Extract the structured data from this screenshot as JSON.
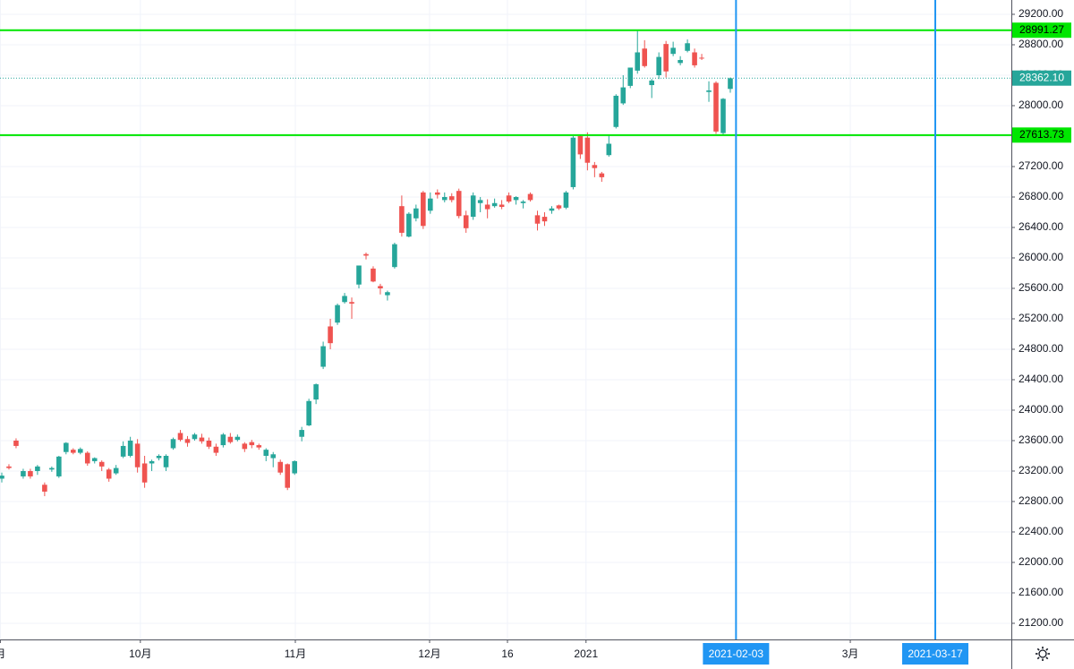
{
  "chart_data": {
    "type": "candlestick",
    "up_color": "#26a69a",
    "down_color": "#ef5350",
    "grid": true,
    "xlim": [
      -0.25,
      141.35
    ],
    "ylim": [
      20988,
      29388
    ],
    "xticks": [
      {
        "value": -0.2,
        "label": "月"
      },
      {
        "value": 19.4,
        "label": "10月"
      },
      {
        "value": 41.1,
        "label": "11月"
      },
      {
        "value": 59.9,
        "label": "12月"
      },
      {
        "value": 70.8,
        "label": "16"
      },
      {
        "value": 81.8,
        "label": "2021"
      },
      {
        "value": 118.8,
        "label": "3月"
      }
    ],
    "yticks": [
      {
        "value": 21200,
        "label": "21200.00"
      },
      {
        "value": 21600,
        "label": "21600.00"
      },
      {
        "value": 22000,
        "label": "22000.00"
      },
      {
        "value": 22400,
        "label": "22400.00"
      },
      {
        "value": 22800,
        "label": "22800.00"
      },
      {
        "value": 23200,
        "label": "23200.00"
      },
      {
        "value": 23600,
        "label": "23600.00"
      },
      {
        "value": 24000,
        "label": "24000.00"
      },
      {
        "value": 24400,
        "label": "24400.00"
      },
      {
        "value": 24800,
        "label": "24800.00"
      },
      {
        "value": 25200,
        "label": "25200.00"
      },
      {
        "value": 25600,
        "label": "25600.00"
      },
      {
        "value": 26000,
        "label": "26000.00"
      },
      {
        "value": 26400,
        "label": "26400.00"
      },
      {
        "value": 26800,
        "label": "26800.00"
      },
      {
        "value": 27200,
        "label": "27200.00"
      },
      {
        "value": 27600,
        "label": "27600.00"
      },
      {
        "value": 28000,
        "label": "28000.00"
      },
      {
        "value": 28400,
        "label": "28400.00"
      },
      {
        "value": 28800,
        "label": "28800.00"
      },
      {
        "value": 29200,
        "label": "29200.00"
      }
    ],
    "hlines": [
      {
        "value": 28991.27,
        "label": "28991.27",
        "color": "#00e600",
        "text_color": "#000000",
        "dashed": false
      },
      {
        "value": 28362.1,
        "label": "28362.10",
        "color": "#26a69a",
        "text_color": "#ffffff",
        "dashed": true
      },
      {
        "value": 27613.73,
        "label": "27613.73",
        "color": "#00e600",
        "text_color": "#000000",
        "dashed": false
      }
    ],
    "vlines": [
      {
        "value": 102.8,
        "label": "2021-02-03",
        "color": "#2196f3"
      },
      {
        "value": 130.7,
        "label": "2021-03-17",
        "color": "#2196f3"
      }
    ],
    "open": [
      23100,
      23260,
      23600,
      23130,
      23200,
      23200,
      23020,
      23220,
      23130,
      23450,
      23480,
      23440,
      23440,
      23330,
      23320,
      23220,
      23170,
      23390,
      23400,
      23560,
      23300,
      23300,
      23370,
      23250,
      23500,
      23700,
      23620,
      23620,
      23640,
      23600,
      23520,
      23540,
      23650,
      23610,
      23560,
      23580,
      23540,
      23400,
      23370,
      23320,
      23290,
      23170,
      23650,
      23800,
      24140,
      24570,
      25100,
      25150,
      25420,
      25420,
      25650,
      26050,
      25860,
      25630,
      25510,
      25880,
      26680,
      26280,
      26520,
      26860,
      26620,
      26860,
      26760,
      26810,
      26880,
      26560,
      26540,
      26720,
      26700,
      26680,
      26700,
      26820,
      26760,
      26720,
      26840,
      26560,
      26540,
      26620,
      26690,
      26660,
      26930,
      27600,
      27580,
      27220,
      27110,
      27350,
      27720,
      28030,
      28260,
      28460,
      28750,
      28270,
      28400,
      28810,
      28680,
      28560,
      28720,
      28700,
      28630,
      28180,
      28300,
      27640,
      28220
    ],
    "high": [
      23180,
      23290,
      23630,
      23230,
      23230,
      23280,
      23050,
      23260,
      23400,
      23580,
      23500,
      23510,
      23460,
      23380,
      23340,
      23240,
      23280,
      23590,
      23650,
      23620,
      23400,
      23350,
      23420,
      23420,
      23640,
      23740,
      23660,
      23700,
      23690,
      23640,
      23560,
      23700,
      23700,
      23680,
      23580,
      23610,
      23560,
      23500,
      23450,
      23350,
      23300,
      23340,
      23780,
      24150,
      24350,
      24900,
      25200,
      25400,
      25540,
      25480,
      25900,
      26070,
      25890,
      25660,
      25570,
      26200,
      26820,
      26600,
      26700,
      26880,
      26860,
      26900,
      26860,
      26850,
      26910,
      26620,
      26860,
      26800,
      26770,
      26780,
      26760,
      26860,
      26810,
      26760,
      26860,
      26620,
      26600,
      26680,
      26700,
      26880,
      27600,
      27620,
      27650,
      27260,
      27130,
      27620,
      28150,
      28400,
      28500,
      28980,
      28860,
      28350,
      28700,
      28850,
      28840,
      28650,
      28870,
      28750,
      28680,
      28320,
      28320,
      28100,
      28370
    ],
    "low": [
      23050,
      23220,
      23500,
      23100,
      23100,
      23150,
      22870,
      23190,
      23110,
      23420,
      23420,
      23420,
      23270,
      23300,
      23200,
      23060,
      23150,
      23370,
      23380,
      23180,
      22980,
      23200,
      23340,
      23200,
      23480,
      23590,
      23520,
      23600,
      23560,
      23490,
      23400,
      23510,
      23560,
      23590,
      23450,
      23500,
      23480,
      23330,
      23250,
      23150,
      22950,
      23150,
      23590,
      23790,
      24080,
      24540,
      24800,
      25120,
      25400,
      25200,
      25600,
      25980,
      25680,
      25520,
      25440,
      25860,
      26280,
      26270,
      26480,
      26380,
      26580,
      26780,
      26730,
      26730,
      26520,
      26330,
      26500,
      26600,
      26520,
      26660,
      26640,
      26720,
      26700,
      26650,
      26740,
      26360,
      26420,
      26580,
      26630,
      26640,
      26900,
      27300,
      27150,
      27060,
      27000,
      27330,
      27700,
      28010,
      28230,
      28420,
      28500,
      28100,
      28350,
      28370,
      28650,
      28530,
      28700,
      28500,
      28600,
      28050,
      27630,
      27610,
      28170
    ],
    "close": [
      23140,
      23240,
      23530,
      23200,
      23130,
      23260,
      22930,
      23240,
      23390,
      23570,
      23440,
      23490,
      23300,
      23370,
      23260,
      23100,
      23240,
      23530,
      23600,
      23250,
      23050,
      23330,
      23400,
      23400,
      23620,
      23610,
      23570,
      23680,
      23590,
      23520,
      23440,
      23680,
      23580,
      23650,
      23490,
      23540,
      23510,
      23480,
      23420,
      23180,
      22980,
      23330,
      23740,
      24120,
      24340,
      24840,
      24880,
      25380,
      25500,
      25400,
      25900,
      26030,
      25690,
      25600,
      25550,
      26180,
      26330,
      26580,
      26650,
      26420,
      26780,
      26830,
      26800,
      26760,
      26550,
      26390,
      26820,
      26760,
      26640,
      26720,
      26670,
      26740,
      26800,
      26740,
      26760,
      26450,
      26480,
      26650,
      26650,
      26860,
      27580,
      27360,
      27250,
      27180,
      27060,
      27500,
      28130,
      28240,
      28500,
      28700,
      28520,
      28330,
      28640,
      28450,
      28760,
      28600,
      28820,
      28530,
      28620,
      28200,
      27660,
      28090,
      28360
    ]
  }
}
